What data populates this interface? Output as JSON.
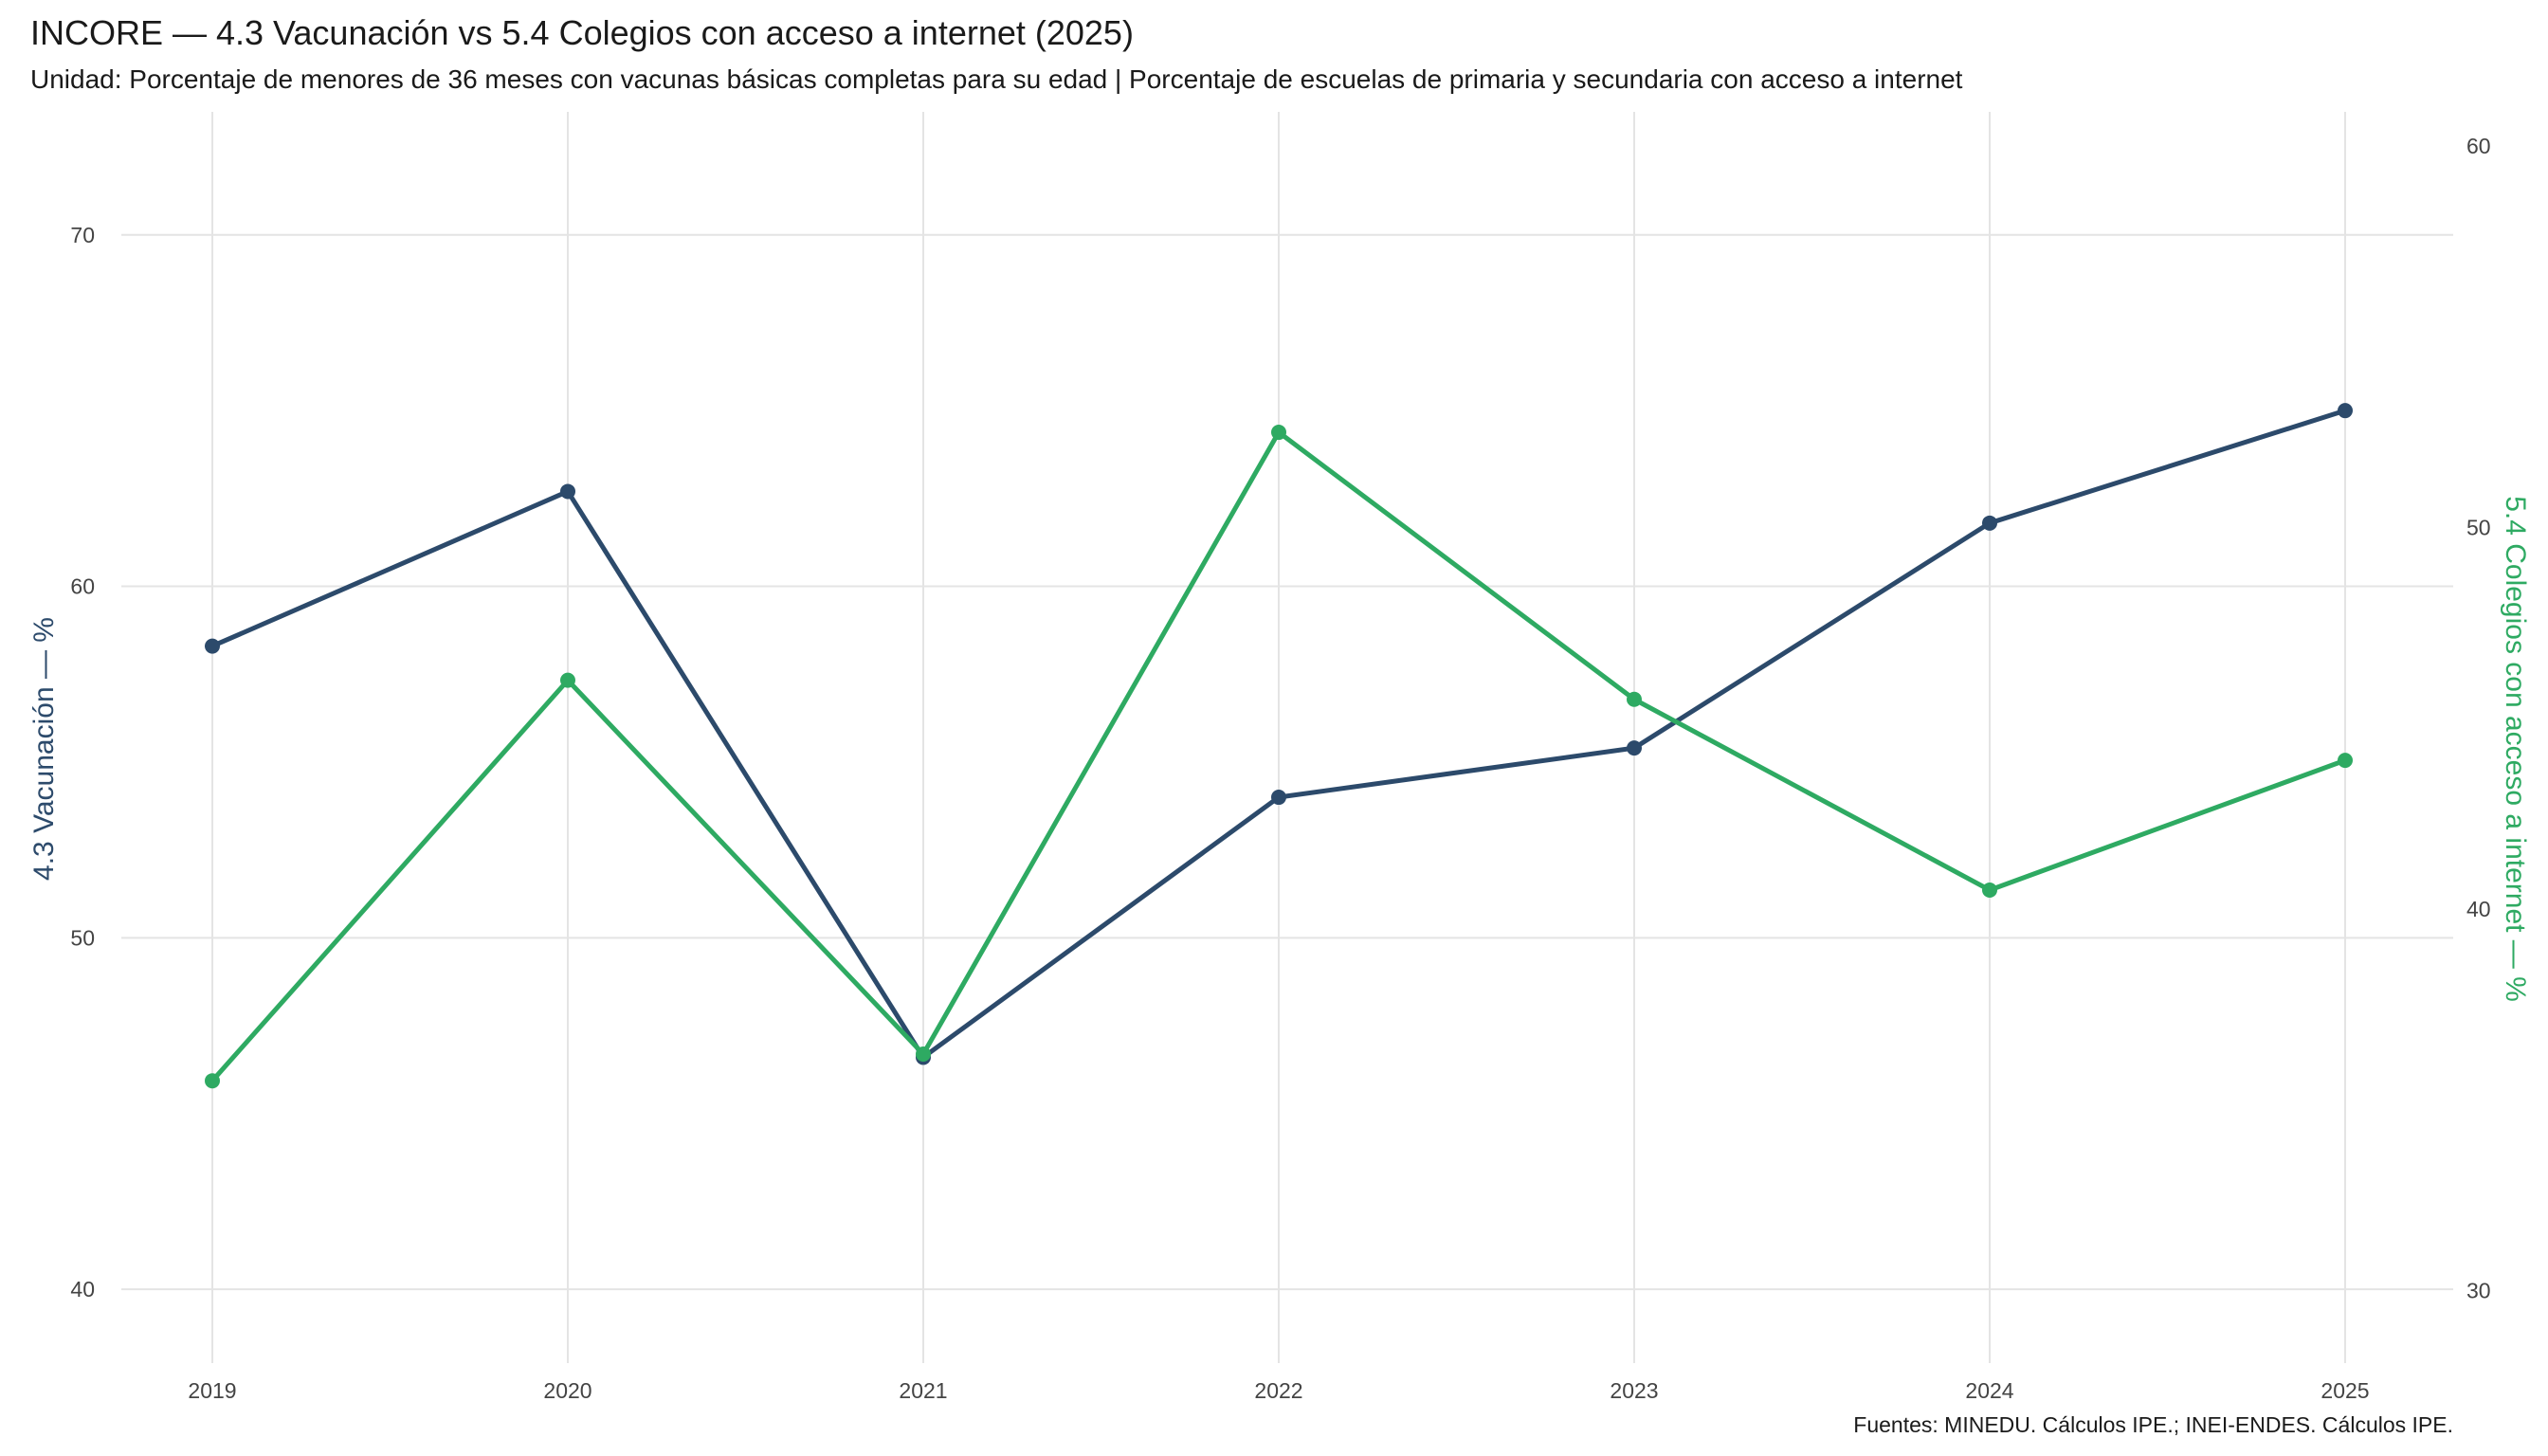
{
  "title": "INCORE — 4.3 Vacunación  vs  5.4 Colegios con acceso a internet (2025)",
  "subtitle": "Unidad: Porcentaje de menores de 36 meses con vacunas básicas completas para su edad  |  Porcentaje de escuelas de primaria y secundaria con acceso a internet",
  "source": "Fuentes: MINEDU. Cálculos IPE.; INEI-ENDES. Cálculos IPE.",
  "chart_data": {
    "type": "line",
    "x": [
      2019,
      2020,
      2021,
      2022,
      2023,
      2024,
      2025
    ],
    "xlabel": "",
    "ylabel": "4.3 Vacunación — %",
    "y2label": "5.4 Colegios con acceso a internet — %",
    "ylim": [
      37.9,
      73.5
    ],
    "y2lim": [
      28.1,
      60.9
    ],
    "yticks": [
      40,
      50,
      60,
      70
    ],
    "y2ticks": [
      30,
      40,
      50,
      60
    ],
    "grid": true,
    "legend": "none",
    "series": [
      {
        "axis": "left",
        "color": "#2c4a6b",
        "values": [
          58.3,
          62.7,
          46.6,
          54.0,
          55.4,
          61.8,
          65.0
        ]
      },
      {
        "axis": "right",
        "color": "#2eaa62",
        "values": [
          35.5,
          46.0,
          36.2,
          52.5,
          45.5,
          40.5,
          43.9
        ]
      }
    ]
  }
}
